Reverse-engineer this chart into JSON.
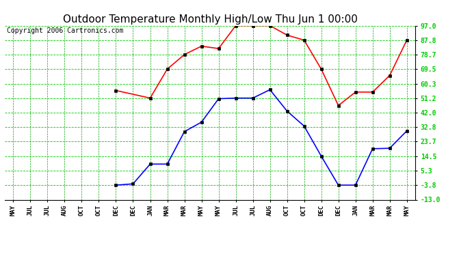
{
  "title": "Outdoor Temperature Monthly High/Low Thu Jun 1 00:00",
  "copyright": "Copyright 2006 Cartronics.com",
  "x_labels": [
    "MAY",
    "JUL",
    "JUL",
    "AUG",
    "OCT",
    "OCT",
    "DEC",
    "DEC",
    "JAN",
    "MAR",
    "MAR",
    "MAY",
    "MAY",
    "JUL",
    "JUL",
    "AUG",
    "OCT",
    "OCT",
    "DEC",
    "DEC",
    "JAN",
    "MAR",
    "MAR",
    "MAY"
  ],
  "high_values": [
    null,
    null,
    null,
    null,
    null,
    null,
    56.0,
    null,
    51.2,
    69.5,
    78.7,
    84.0,
    82.5,
    97.0,
    97.0,
    97.0,
    91.0,
    87.8,
    69.5,
    46.5,
    55.0,
    55.0,
    65.5,
    87.8
  ],
  "low_values": [
    null,
    null,
    null,
    null,
    null,
    null,
    -3.8,
    -3.0,
    9.5,
    9.5,
    30.0,
    36.0,
    50.8,
    51.2,
    51.2,
    56.5,
    43.0,
    33.5,
    14.5,
    -3.8,
    -3.8,
    19.2,
    19.5,
    30.5
  ],
  "yticks": [
    97.0,
    87.8,
    78.7,
    69.5,
    60.3,
    51.2,
    42.0,
    32.8,
    23.7,
    14.5,
    5.3,
    -3.8,
    -13.0
  ],
  "ymin": -13.0,
  "ymax": 97.0,
  "high_color": "#ff0000",
  "low_color": "#0000ff",
  "bg_color": "#ffffff",
  "plot_bg": "#ffffff",
  "grid_color_h": "#00cc00",
  "grid_color_v": "#00aa00",
  "title_fontsize": 11,
  "copyright_fontsize": 7
}
